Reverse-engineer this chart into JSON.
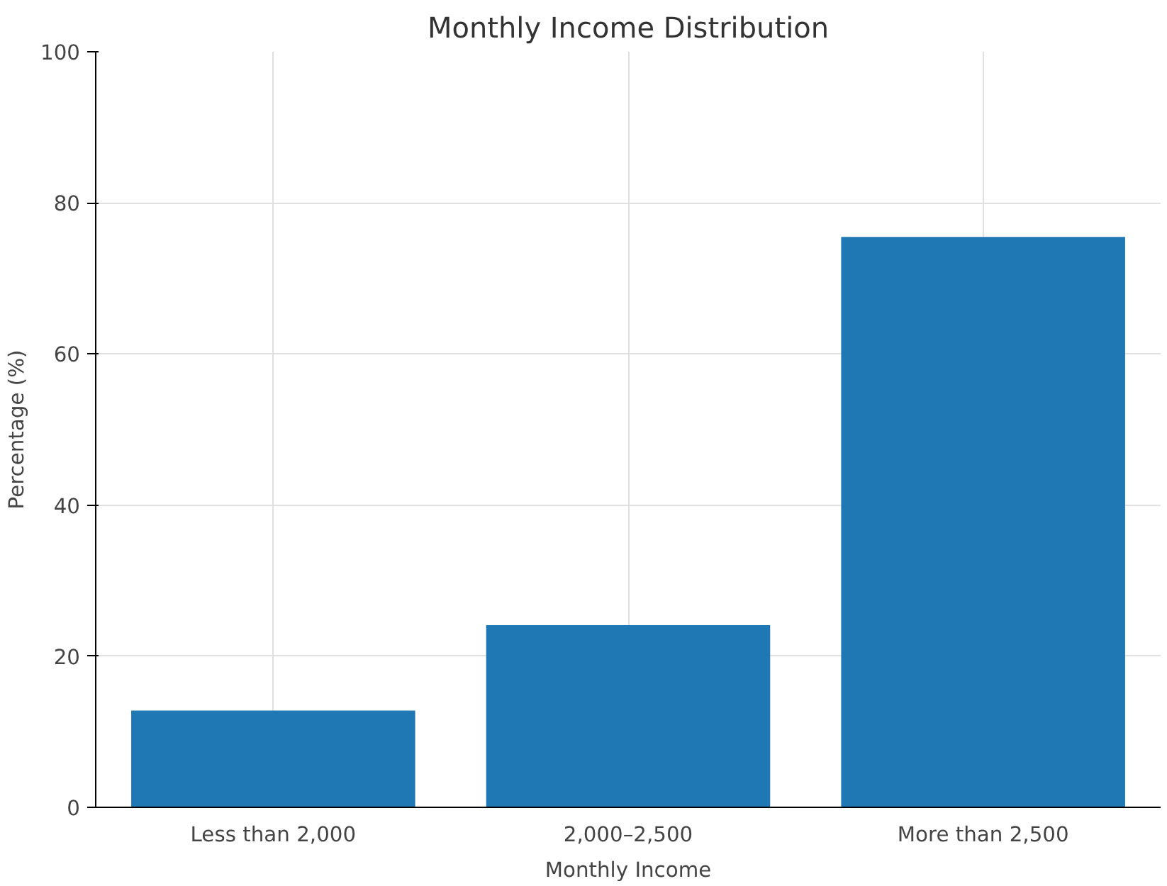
{
  "chart_data": {
    "type": "bar",
    "title": "Monthly Income Distribution",
    "xlabel": "Monthly Income",
    "ylabel": "Percentage (%)",
    "categories": [
      "Less than 2,000",
      "2,000–2,500",
      "More than 2,500"
    ],
    "values": [
      12.8,
      24.1,
      75.5
    ],
    "color": "#1f77b4",
    "ylim": [
      0,
      100
    ],
    "yticks": [
      0,
      20,
      40,
      60,
      80,
      100
    ],
    "grid": true
  }
}
